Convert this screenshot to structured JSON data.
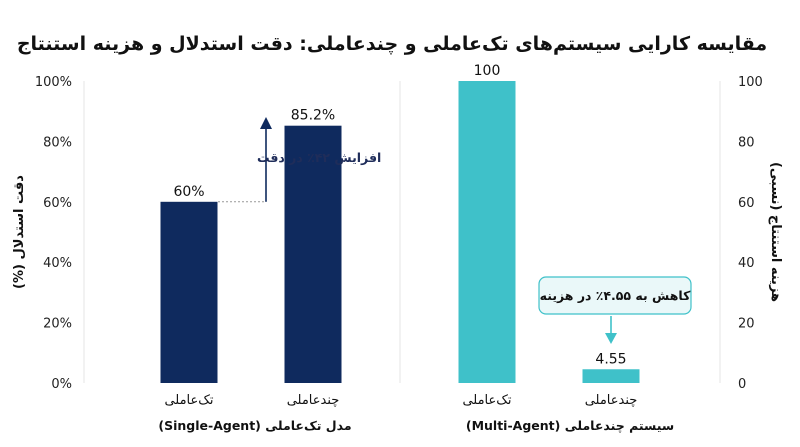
{
  "title": "مقایسه کارایی سیستم‌های تک‌عاملی و چندعاملی: دقت استدلال و هزینه استنتاج",
  "colors": {
    "accuracy_bar": "#0f2a5e",
    "cost_bar": "#3fc1c9",
    "annotation_box_border": "#3fc1c9",
    "annotation_box_fill": "#eaf8f9",
    "divider": "#e5e5e5"
  },
  "chart_data": [
    {
      "type": "bar",
      "group_label": "مدل تک‌عاملی (Single-Agent)",
      "categories": [
        "تک‌عاملی",
        "چندعاملی"
      ],
      "values": [
        60,
        85.2
      ],
      "data_labels": [
        "60%",
        "85.2%"
      ],
      "ylabel": "دقت استدلال (%)",
      "yaxis_position": "left",
      "ylim": [
        0,
        100
      ],
      "yticks": [
        "0%",
        "20%",
        "40%",
        "60%",
        "80%",
        "100%"
      ],
      "annotation": "افزایش ۴۲٪ در دقت"
    },
    {
      "type": "bar",
      "group_label": "سیستم چندعاملی (Multi-Agent)",
      "categories": [
        "تک‌عاملی",
        "چندعاملی"
      ],
      "values": [
        100,
        4.55
      ],
      "data_labels": [
        "100",
        "4.55"
      ],
      "ylabel": "هزینه استنتاج (نسبی)",
      "yaxis_position": "right",
      "ylim": [
        0,
        100
      ],
      "yticks": [
        "0",
        "20",
        "40",
        "60",
        "80",
        "100"
      ],
      "annotation": "کاهش به ۴.۵۵٪ در هزینه"
    }
  ]
}
